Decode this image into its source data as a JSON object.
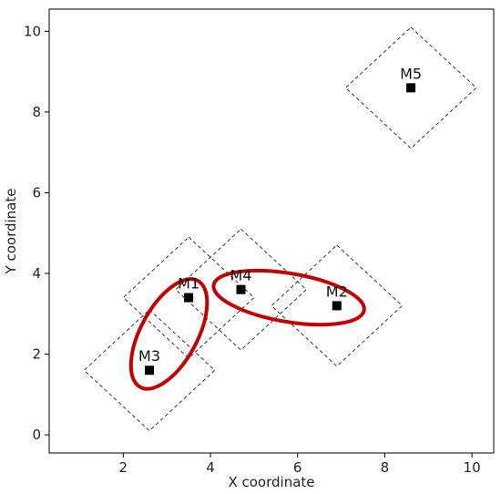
{
  "chart_data": {
    "type": "scatter",
    "title": "",
    "xlabel": "X coordinate",
    "ylabel": "Y coordinate",
    "xlim": [
      0.3,
      10.5
    ],
    "ylim": [
      -0.45,
      10.55
    ],
    "xticks": [
      2,
      4,
      6,
      8,
      10
    ],
    "yticks": [
      0,
      2,
      4,
      6,
      8,
      10
    ],
    "grid": false,
    "points": [
      {
        "label": "M1",
        "x": 3.5,
        "y": 3.4
      },
      {
        "label": "M2",
        "x": 6.9,
        "y": 3.2
      },
      {
        "label": "M3",
        "x": 2.6,
        "y": 1.6
      },
      {
        "label": "M4",
        "x": 4.7,
        "y": 3.6
      },
      {
        "label": "M5",
        "x": 8.6,
        "y": 8.6
      }
    ],
    "diamonds": {
      "half_width": 1.5,
      "half_height": 1.5,
      "style": "dashed",
      "color": "#333333"
    },
    "groupings": [
      {
        "members": [
          "M1",
          "M3"
        ],
        "center": [
          3.05,
          2.5
        ],
        "rx": 0.65,
        "ry": 1.5,
        "color": "#c00000"
      },
      {
        "members": [
          "M4",
          "M2"
        ],
        "center": [
          5.8,
          3.4
        ],
        "rx": 1.75,
        "ry": 0.6,
        "color": "#c00000"
      }
    ],
    "marker": {
      "shape": "square",
      "color": "#000000"
    }
  }
}
